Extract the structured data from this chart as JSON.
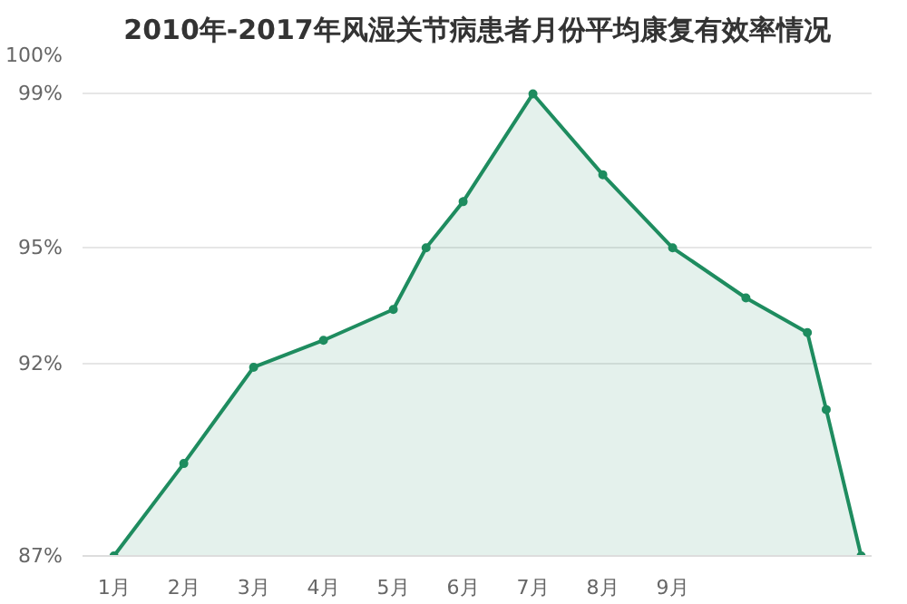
{
  "chart_data": {
    "type": "area",
    "title": "2010年-2017年风湿关节病患者月份平均康复有效率情况",
    "x": [
      1,
      2,
      3,
      4,
      5,
      5.47,
      6,
      7,
      8,
      9,
      10.05,
      10.93,
      11.2,
      11.7
    ],
    "series": [
      {
        "color": "#1e8c5f",
        "values": [
          87,
          89.4,
          91.9,
          92.6,
          93.4,
          95,
          96.2,
          99,
          96.9,
          95,
          93.7,
          92.8,
          90.8,
          87
        ]
      }
    ],
    "xlim": [
      0.55,
      11.85
    ],
    "xticks": [
      {
        "value": 1,
        "label": "1月"
      },
      {
        "value": 2,
        "label": "2月"
      },
      {
        "value": 3,
        "label": "3月"
      },
      {
        "value": 4,
        "label": "4月"
      },
      {
        "value": 5,
        "label": "5月"
      },
      {
        "value": 6,
        "label": "6月"
      },
      {
        "value": 7,
        "label": "7月"
      },
      {
        "value": 8,
        "label": "8月"
      },
      {
        "value": 9,
        "label": "9月"
      }
    ],
    "ylim": [
      87,
      100
    ],
    "yticks": [
      {
        "value": 87,
        "label": "87%"
      },
      {
        "value": 92,
        "label": "92%"
      },
      {
        "value": 95,
        "label": "95%"
      },
      {
        "value": 99,
        "label": "99%"
      },
      {
        "value": 100,
        "label": "100%"
      }
    ],
    "grid": "y",
    "marker": "circle",
    "line_style": "solid"
  }
}
